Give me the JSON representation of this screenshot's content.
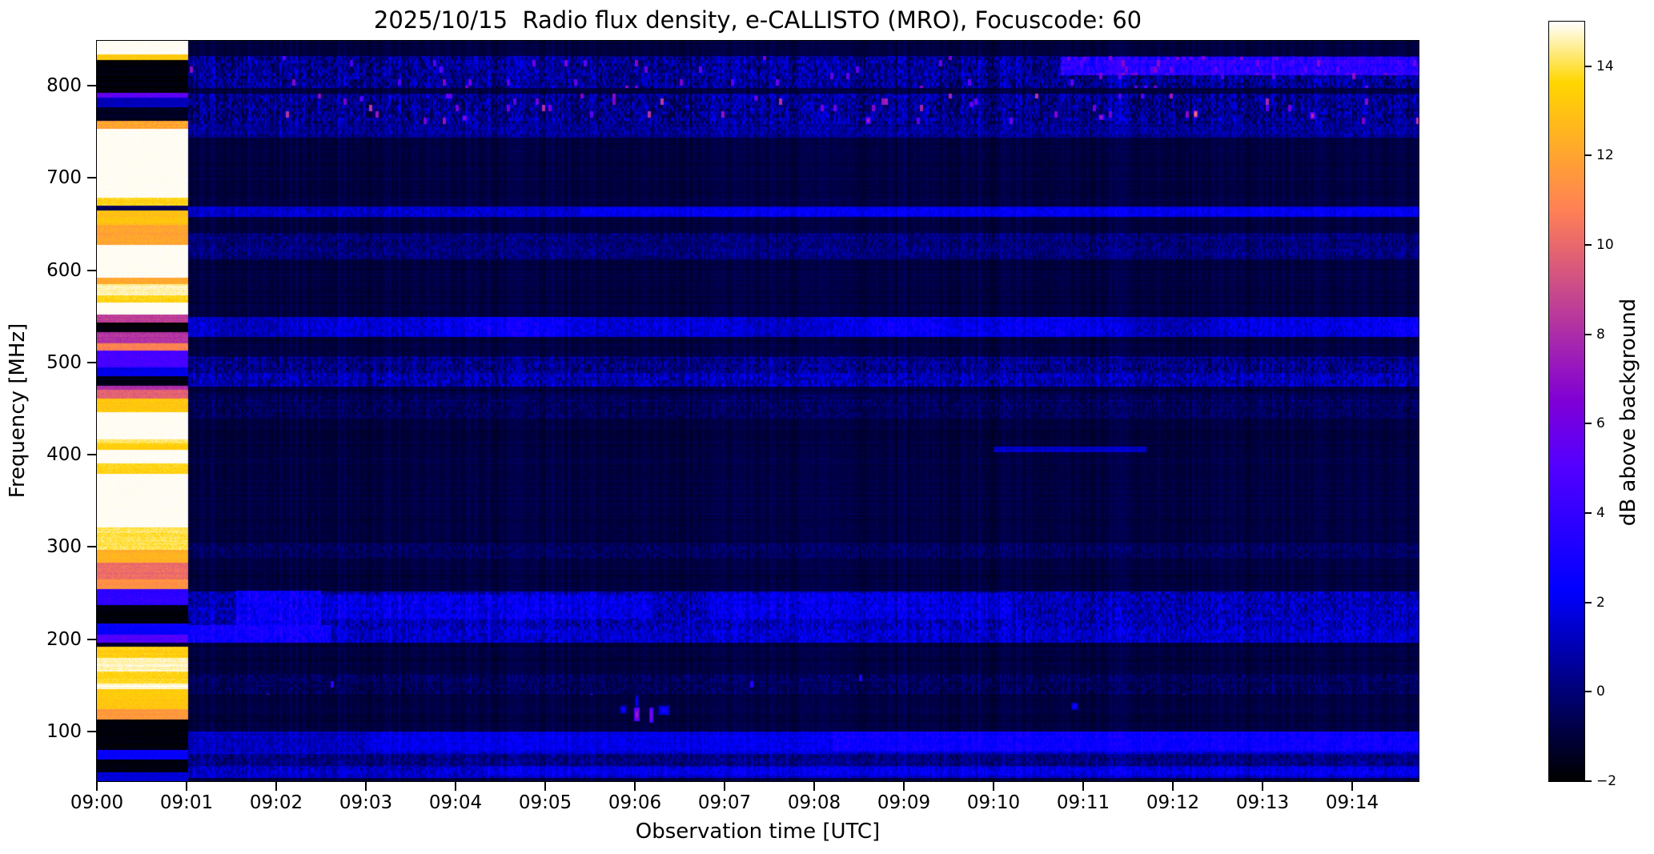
{
  "chart_data": {
    "type": "heatmap",
    "title": "2025/10/15  Radio flux density, e-CALLISTO (MRO), Focuscode: 60",
    "xlabel": "Observation time [UTC]",
    "ylabel": "Frequency [MHz]",
    "x_ticks": [
      "09:00",
      "09:01",
      "09:02",
      "09:03",
      "09:04",
      "09:05",
      "09:06",
      "09:07",
      "09:08",
      "09:09",
      "09:10",
      "09:11",
      "09:12",
      "09:13",
      "09:14"
    ],
    "y_ticks": [
      100,
      200,
      300,
      400,
      500,
      600,
      700,
      800
    ],
    "ylim": [
      46,
      849
    ],
    "x_range_minutes": [
      0,
      14.74
    ],
    "colormap": "gnuplot2",
    "clim": [
      -2,
      15
    ],
    "colorbar": {
      "label": "dB above background",
      "ticks": [
        14,
        12,
        10,
        8,
        6,
        4,
        2,
        0,
        -2
      ]
    },
    "legend_position": "right-colorbar",
    "grid": false,
    "background_texture": {
      "base_db": -0.9,
      "row_jitter": 0.9,
      "col_jitter": 0.5,
      "pixel_jitter": 1.0
    },
    "calibration_column": {
      "t_start_min": 0.0,
      "t_end_min": 1.02,
      "bands_f_lo_hi_db_speckle": [
        [
          834,
          849,
          15.0,
          0.05
        ],
        [
          828,
          834,
          13.2,
          0.4
        ],
        [
          792,
          828,
          -1.8,
          0.1
        ],
        [
          787,
          792,
          5.5,
          0.8
        ],
        [
          777,
          787,
          1.2,
          0.4
        ],
        [
          762,
          777,
          -1.4,
          0.3
        ],
        [
          753,
          762,
          12.0,
          0.8
        ],
        [
          679,
          753,
          15.0,
          0.05
        ],
        [
          670,
          679,
          13.6,
          0.5
        ],
        [
          665,
          670,
          -0.5,
          0.4
        ],
        [
          649,
          665,
          13.0,
          0.4
        ],
        [
          627,
          649,
          12.0,
          0.5
        ],
        [
          592,
          627,
          15.0,
          0.05
        ],
        [
          585,
          592,
          12.0,
          0.5
        ],
        [
          573,
          585,
          14.6,
          0.3
        ],
        [
          565,
          573,
          13.6,
          0.5
        ],
        [
          552,
          565,
          15.0,
          0.1
        ],
        [
          543,
          552,
          8.6,
          0.5
        ],
        [
          533,
          543,
          -1.8,
          0.1
        ],
        [
          521,
          533,
          8.2,
          0.5
        ],
        [
          513,
          521,
          10.8,
          0.5
        ],
        [
          495,
          513,
          4.6,
          0.6
        ],
        [
          485,
          495,
          2.0,
          0.5
        ],
        [
          475,
          485,
          -1.6,
          0.15
        ],
        [
          470,
          475,
          8.0,
          0.5
        ],
        [
          461,
          470,
          9.8,
          0.5
        ],
        [
          446,
          461,
          13.2,
          0.5
        ],
        [
          417,
          446,
          15.0,
          0.05
        ],
        [
          412,
          417,
          14.2,
          0.4
        ],
        [
          405,
          412,
          13.4,
          0.4
        ],
        [
          391,
          405,
          15.0,
          0.05
        ],
        [
          379,
          391,
          13.6,
          0.5
        ],
        [
          321,
          379,
          15.0,
          0.05
        ],
        [
          297,
          321,
          14.0,
          0.5
        ],
        [
          283,
          297,
          12.4,
          0.4
        ],
        [
          265,
          283,
          10.2,
          0.5
        ],
        [
          254,
          265,
          11.4,
          0.4
        ],
        [
          237,
          254,
          3.8,
          0.7
        ],
        [
          217,
          237,
          -1.8,
          0.1
        ],
        [
          205,
          217,
          2.4,
          0.5
        ],
        [
          196,
          205,
          5.0,
          0.6
        ],
        [
          192,
          196,
          -1.2,
          0.3
        ],
        [
          180,
          192,
          13.4,
          0.5
        ],
        [
          165,
          180,
          14.6,
          0.3
        ],
        [
          152,
          165,
          13.6,
          0.5
        ],
        [
          146,
          152,
          14.8,
          0.15
        ],
        [
          124,
          146,
          13.2,
          0.4
        ],
        [
          113,
          124,
          11.6,
          0.5
        ],
        [
          80,
          113,
          -1.8,
          0.1
        ],
        [
          70,
          80,
          2.4,
          0.5
        ],
        [
          56,
          70,
          -1.8,
          0.1
        ],
        [
          46,
          56,
          1.6,
          0.5
        ]
      ]
    },
    "bands": [
      {
        "f": [
          797,
          832
        ],
        "db": 0.5,
        "speckle": 1.7,
        "flecks": [
          0.02,
          4.5,
          7.0
        ]
      },
      {
        "f": [
          758,
          791
        ],
        "db": 0.4,
        "speckle": 1.8,
        "flecks": [
          0.022,
          5.0,
          8.5
        ]
      },
      {
        "f": [
          744,
          758
        ],
        "db": 0.5,
        "speckle": 1.1
      },
      {
        "f": [
          658,
          669
        ],
        "db": 1.5,
        "speckle": 0.8
      },
      {
        "f": [
          612,
          640
        ],
        "db": 0.0,
        "speckle": 0.9
      },
      {
        "f": [
          528,
          549
        ],
        "db": 1.8,
        "speckle": 0.9,
        "wavy": true
      },
      {
        "f": [
          489,
          507
        ],
        "db": 0.2,
        "speckle": 1.3
      },
      {
        "f": [
          474,
          489
        ],
        "db": 1.0,
        "speckle": 1.4
      },
      {
        "f": [
          440,
          465
        ],
        "db": -0.5,
        "speckle": 0.8
      },
      {
        "f": [
          287,
          305
        ],
        "db": -0.35,
        "speckle": 0.7
      },
      {
        "f": [
          210,
          252
        ],
        "db": 1.1,
        "speckle": 1.4
      },
      {
        "f": [
          196,
          210
        ],
        "db": 1.4,
        "speckle": 1.2
      },
      {
        "f": [
          140,
          162
        ],
        "db": -0.5,
        "speckle": 0.9,
        "flecks": [
          0.004,
          2.5,
          4.5
        ]
      },
      {
        "f": [
          76,
          100
        ],
        "db": 1.3,
        "speckle": 0.8
      },
      {
        "f": [
          63,
          76
        ],
        "db": 0.2,
        "speckle": 1.0
      },
      {
        "f": [
          50,
          63
        ],
        "db": 1.3,
        "speckle": 1.1
      }
    ],
    "patches": [
      {
        "t": [
          10.75,
          14.74
        ],
        "f": [
          811,
          831
        ],
        "db": 3.6,
        "speckle": 1.2,
        "flecks": [
          0.06,
          5.0,
          7.0
        ]
      },
      {
        "t": [
          1.55,
          2.5
        ],
        "f": [
          211,
          253
        ],
        "db": 2.5,
        "speckle": 1.2
      },
      {
        "t": [
          0.95,
          2.6
        ],
        "f": [
          196,
          215
        ],
        "db": 2.8,
        "speckle": 1.0
      },
      {
        "t": [
          3.0,
          14.74
        ],
        "f": [
          78,
          99
        ],
        "db": 2.0,
        "speckle": 0.7
      },
      {
        "t": [
          8.2,
          14.74
        ],
        "f": [
          78,
          100
        ],
        "db": 2.7,
        "speckle": 0.7
      },
      {
        "t": [
          5.4,
          14.74
        ],
        "f": [
          659,
          668
        ],
        "db": 2.1,
        "speckle": 0.7
      },
      {
        "t": [
          2.5,
          6.2
        ],
        "f": [
          222,
          248
        ],
        "db": 1.9,
        "speckle": 1.3
      },
      {
        "t": [
          6.8,
          10.2
        ],
        "f": [
          222,
          250
        ],
        "db": 1.7,
        "speckle": 1.3
      },
      {
        "t": [
          10.0,
          11.7
        ],
        "f": [
          403,
          409
        ],
        "db": 1.3,
        "speckle": 0.5
      },
      {
        "t": [
          4.3,
          14.74
        ],
        "f": [
          52,
          62
        ],
        "db": 1.8,
        "speckle": 1.0
      }
    ],
    "events": [
      {
        "t": 6.02,
        "f": 119,
        "db": 7.6,
        "w": 6,
        "h": 16
      },
      {
        "t": 6.18,
        "f": 118,
        "db": 7.0,
        "w": 4,
        "h": 18
      },
      {
        "t": 5.87,
        "f": 124,
        "db": 3.0,
        "w": 8,
        "h": 10
      },
      {
        "t": 6.32,
        "f": 123,
        "db": 3.2,
        "w": 14,
        "h": 12
      },
      {
        "t": 6.02,
        "f": 133,
        "db": 2.6,
        "w": 5,
        "h": 18
      },
      {
        "t": 10.9,
        "f": 128,
        "db": 3.2,
        "w": 8,
        "h": 9
      },
      {
        "t": 12.25,
        "f": 770,
        "db": 11.0,
        "w": 4,
        "h": 7
      },
      {
        "t": 13.55,
        "f": 768,
        "db": 8.5,
        "w": 5,
        "h": 7
      },
      {
        "t": 11.2,
        "f": 766,
        "db": 8.0,
        "w": 5,
        "h": 6
      },
      {
        "t": 2.95,
        "f": 786,
        "db": 6.5,
        "w": 4,
        "h": 6
      },
      {
        "t": 4.1,
        "f": 765,
        "db": 7.2,
        "w": 5,
        "h": 6
      },
      {
        "t": 7.35,
        "f": 787,
        "db": 7.0,
        "w": 4,
        "h": 6
      },
      {
        "t": 8.6,
        "f": 763,
        "db": 8.0,
        "w": 5,
        "h": 7
      },
      {
        "t": 9.75,
        "f": 780,
        "db": 7.0,
        "w": 4,
        "h": 6
      }
    ]
  }
}
